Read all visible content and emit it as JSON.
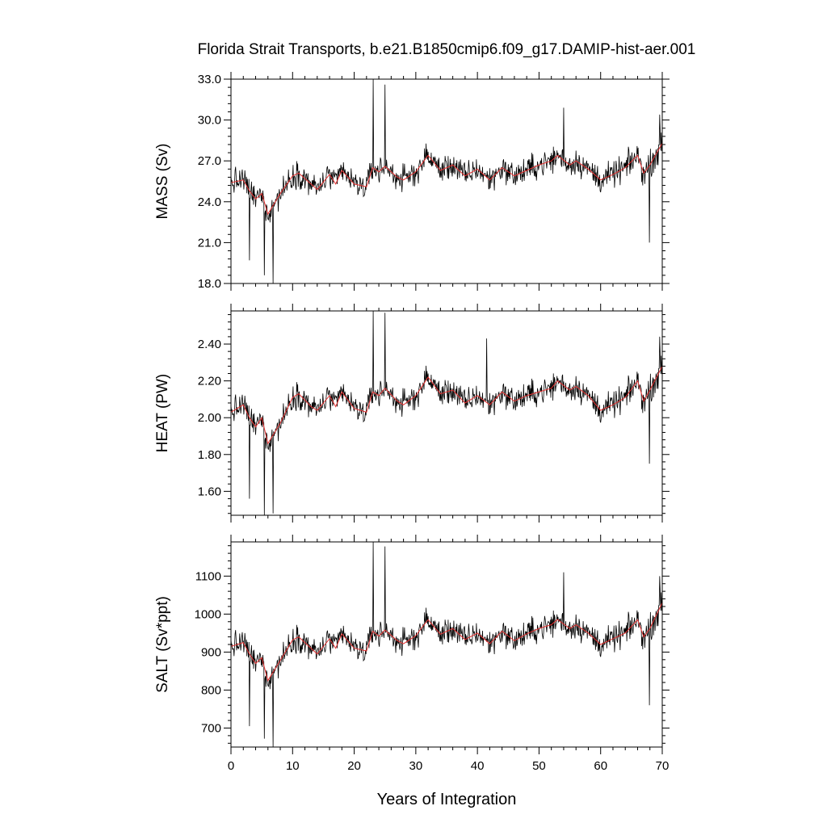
{
  "chart_data": {
    "type": "line",
    "title": "Florida Strait Transports, b.e21.B1850cmip6.f09_g17.DAMIP-hist-aer.001",
    "xlabel": "Years of Integration",
    "x_range": [
      0,
      70
    ],
    "x_ticks": [
      "0",
      "10",
      "20",
      "30",
      "40",
      "50",
      "60",
      "70"
    ],
    "grid": false,
    "legend": "none",
    "colors": {
      "monthly": "#000000",
      "smoothed": "#e53030"
    },
    "panels": [
      {
        "ylabel": "MASS (Sv)",
        "ylim": [
          18.0,
          33.0
        ],
        "y_ticks": [
          "18.0",
          "21.0",
          "24.0",
          "27.0",
          "30.0",
          "33.0"
        ],
        "smoothed": {
          "x": [
            0,
            2,
            3,
            4,
            5,
            6,
            8,
            10,
            11,
            13,
            14,
            16,
            17,
            18,
            20,
            22,
            23,
            24,
            25,
            27,
            28,
            30,
            31,
            32,
            34,
            36,
            38,
            40,
            42,
            44,
            46,
            48,
            50,
            52,
            53,
            55,
            56,
            58,
            60,
            62,
            64,
            66,
            67,
            68,
            70
          ],
          "y": [
            25.4,
            25.6,
            24.8,
            24.2,
            24.6,
            23.1,
            24.6,
            25.9,
            26.1,
            25.3,
            24.9,
            26.0,
            25.3,
            26.3,
            25.3,
            25.1,
            26.5,
            26.2,
            26.6,
            25.8,
            25.6,
            26.2,
            26.8,
            27.4,
            26.3,
            26.7,
            25.9,
            26.4,
            25.6,
            26.5,
            25.9,
            26.3,
            26.7,
            27.0,
            27.4,
            26.7,
            27.0,
            26.4,
            25.6,
            26.0,
            26.5,
            27.4,
            26.1,
            26.7,
            28.3
          ]
        },
        "anomalies": [
          {
            "x": 3.0,
            "y": 19.7
          },
          {
            "x": 5.4,
            "y": 18.6
          },
          {
            "x": 6.8,
            "y": 18.0
          },
          {
            "x": 23.1,
            "y": 33.0
          },
          {
            "x": 25.0,
            "y": 32.6
          },
          {
            "x": 54.0,
            "y": 30.9
          },
          {
            "x": 67.9,
            "y": 21.0
          },
          {
            "x": 69.6,
            "y": 30.4
          }
        ]
      },
      {
        "ylabel": "HEAT (PW)",
        "ylim": [
          1.47,
          2.58
        ],
        "y_ticks": [
          "1.60",
          "1.80",
          "2.00",
          "2.20",
          "2.40"
        ],
        "smoothed": {
          "x": [
            0,
            2,
            3,
            4,
            5,
            6,
            8,
            10,
            11,
            13,
            14,
            16,
            17,
            18,
            20,
            22,
            23,
            24,
            25,
            27,
            28,
            30,
            31,
            32,
            34,
            36,
            38,
            40,
            42,
            44,
            46,
            48,
            50,
            52,
            53,
            55,
            56,
            58,
            60,
            62,
            64,
            66,
            67,
            68,
            70
          ],
          "y": [
            2.03,
            2.07,
            2.0,
            1.95,
            2.0,
            1.86,
            1.97,
            2.11,
            2.13,
            2.06,
            2.04,
            2.12,
            2.06,
            2.14,
            2.05,
            2.03,
            2.14,
            2.12,
            2.16,
            2.09,
            2.07,
            2.12,
            2.17,
            2.22,
            2.13,
            2.15,
            2.08,
            2.12,
            2.07,
            2.14,
            2.09,
            2.12,
            2.14,
            2.16,
            2.2,
            2.15,
            2.17,
            2.12,
            2.04,
            2.07,
            2.11,
            2.2,
            2.09,
            2.15,
            2.28
          ]
        },
        "anomalies": [
          {
            "x": 3.0,
            "y": 1.56
          },
          {
            "x": 5.4,
            "y": 1.47
          },
          {
            "x": 6.8,
            "y": 1.48
          },
          {
            "x": 23.1,
            "y": 2.58
          },
          {
            "x": 25.0,
            "y": 2.57
          },
          {
            "x": 41.5,
            "y": 2.43
          },
          {
            "x": 67.9,
            "y": 1.75
          },
          {
            "x": 69.6,
            "y": 2.44
          }
        ]
      },
      {
        "ylabel": "SALT (Sv*ppt)",
        "ylim": [
          650,
          1190
        ],
        "y_ticks": [
          "700",
          "800",
          "900",
          "1000",
          "1100"
        ],
        "smoothed": {
          "x": [
            0,
            2,
            3,
            4,
            5,
            6,
            8,
            10,
            11,
            13,
            14,
            16,
            17,
            18,
            20,
            22,
            23,
            24,
            25,
            27,
            28,
            30,
            31,
            32,
            34,
            36,
            38,
            40,
            42,
            44,
            46,
            48,
            50,
            52,
            53,
            55,
            56,
            58,
            60,
            62,
            64,
            66,
            67,
            68,
            70
          ],
          "y": [
            915,
            925,
            895,
            870,
            885,
            825,
            878,
            932,
            940,
            910,
            895,
            935,
            910,
            948,
            910,
            903,
            955,
            942,
            958,
            930,
            922,
            943,
            965,
            985,
            947,
            962,
            933,
            950,
            922,
            955,
            930,
            948,
            962,
            972,
            986,
            962,
            972,
            950,
            920,
            935,
            950,
            985,
            940,
            962,
            1030
          ]
        },
        "anomalies": [
          {
            "x": 3.0,
            "y": 705
          },
          {
            "x": 5.4,
            "y": 672
          },
          {
            "x": 6.8,
            "y": 650
          },
          {
            "x": 23.1,
            "y": 1190
          },
          {
            "x": 25.0,
            "y": 1178
          },
          {
            "x": 54.0,
            "y": 1110
          },
          {
            "x": 67.9,
            "y": 760
          },
          {
            "x": 69.6,
            "y": 1100
          }
        ]
      }
    ]
  }
}
